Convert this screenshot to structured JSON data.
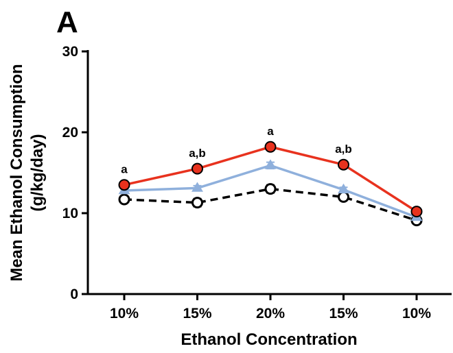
{
  "panel_label": "A",
  "chart_data": {
    "type": "line",
    "panel": "A",
    "title": "",
    "xlabel": "Ethanol Concentration",
    "ylabel_line1": "Mean Ethanol Consumption",
    "ylabel_line2": "(g/kg/day)",
    "categories": [
      "10%",
      "15%",
      "20%",
      "15%",
      "10%"
    ],
    "ylim": [
      0,
      30
    ],
    "yticks": [
      0,
      10,
      20,
      30
    ],
    "grid": false,
    "legend": "none",
    "series": [
      {
        "values": [
          11.7,
          11.3,
          13.0,
          12.0,
          9.1
        ],
        "errors": [
          0.4,
          0.5,
          0.5,
          0.4,
          0.3
        ],
        "color": "#000000",
        "line_style": "dashed",
        "marker": "open-circle",
        "marker_fill": "#ffffff",
        "marker_stroke": "#000000"
      },
      {
        "values": [
          12.8,
          13.1,
          15.9,
          12.9,
          9.5
        ],
        "errors": [
          0.3,
          0.3,
          0.4,
          0.3,
          0.2
        ],
        "color": "#8fb0dc",
        "line_style": "solid",
        "marker": "triangle",
        "marker_fill": "#8fb0dc",
        "marker_stroke": "#8fb0dc"
      },
      {
        "values": [
          13.5,
          15.5,
          18.2,
          16.0,
          10.2
        ],
        "errors": [
          0.3,
          0.3,
          0.4,
          0.4,
          0.3
        ],
        "color": "#e8321e",
        "line_style": "solid",
        "marker": "filled-circle",
        "marker_fill": "#e8321e",
        "marker_stroke": "#000000"
      }
    ],
    "annotations": [
      {
        "category_index": 0,
        "text": "a"
      },
      {
        "category_index": 1,
        "text": "a,b"
      },
      {
        "category_index": 2,
        "text": "a"
      },
      {
        "category_index": 3,
        "text": "a,b"
      }
    ]
  }
}
